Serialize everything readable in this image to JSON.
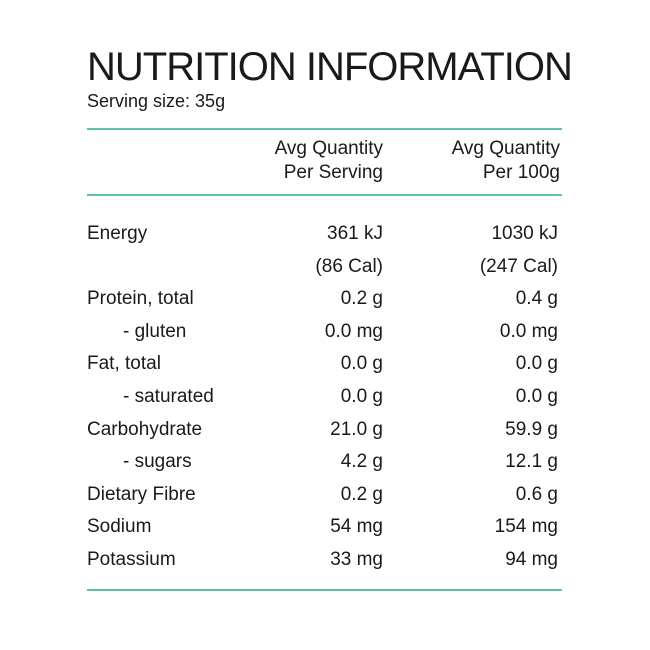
{
  "title": "NUTRITION INFORMATION",
  "serving_size": "Serving size: 35g",
  "colors": {
    "rule": "#5cc4ad",
    "text": "#1a1a1a"
  },
  "columns": {
    "per_serving_line1": "Avg Quantity",
    "per_serving_line2": "Per Serving",
    "per_100g_line1": "Avg Quantity",
    "per_100g_line2": "Per 100g"
  },
  "rows": [
    {
      "label": "Energy",
      "per_serving": "361 kJ",
      "per_100g": "1030 kJ",
      "sub": false
    },
    {
      "label": "",
      "per_serving": "(86 Cal)",
      "per_100g": "(247 Cal)",
      "sub": false
    },
    {
      "label": "Protein, total",
      "per_serving": "0.2 g",
      "per_100g": "0.4 g",
      "sub": false
    },
    {
      "label": "- gluten",
      "per_serving": "0.0 mg",
      "per_100g": "0.0 mg",
      "sub": true
    },
    {
      "label": "Fat, total",
      "per_serving": "0.0 g",
      "per_100g": "0.0 g",
      "sub": false
    },
    {
      "label": "- saturated",
      "per_serving": "0.0 g",
      "per_100g": "0.0 g",
      "sub": true
    },
    {
      "label": "Carbohydrate",
      "per_serving": "21.0 g",
      "per_100g": "59.9 g",
      "sub": false
    },
    {
      "label": "- sugars",
      "per_serving": "4.2 g",
      "per_100g": "12.1 g",
      "sub": true
    },
    {
      "label": "Dietary Fibre",
      "per_serving": "0.2 g",
      "per_100g": "0.6 g",
      "sub": false
    },
    {
      "label": "Sodium",
      "per_serving": "54 mg",
      "per_100g": "154 mg",
      "sub": false
    },
    {
      "label": "Potassium",
      "per_serving": "33 mg",
      "per_100g": "94 mg",
      "sub": false
    }
  ]
}
